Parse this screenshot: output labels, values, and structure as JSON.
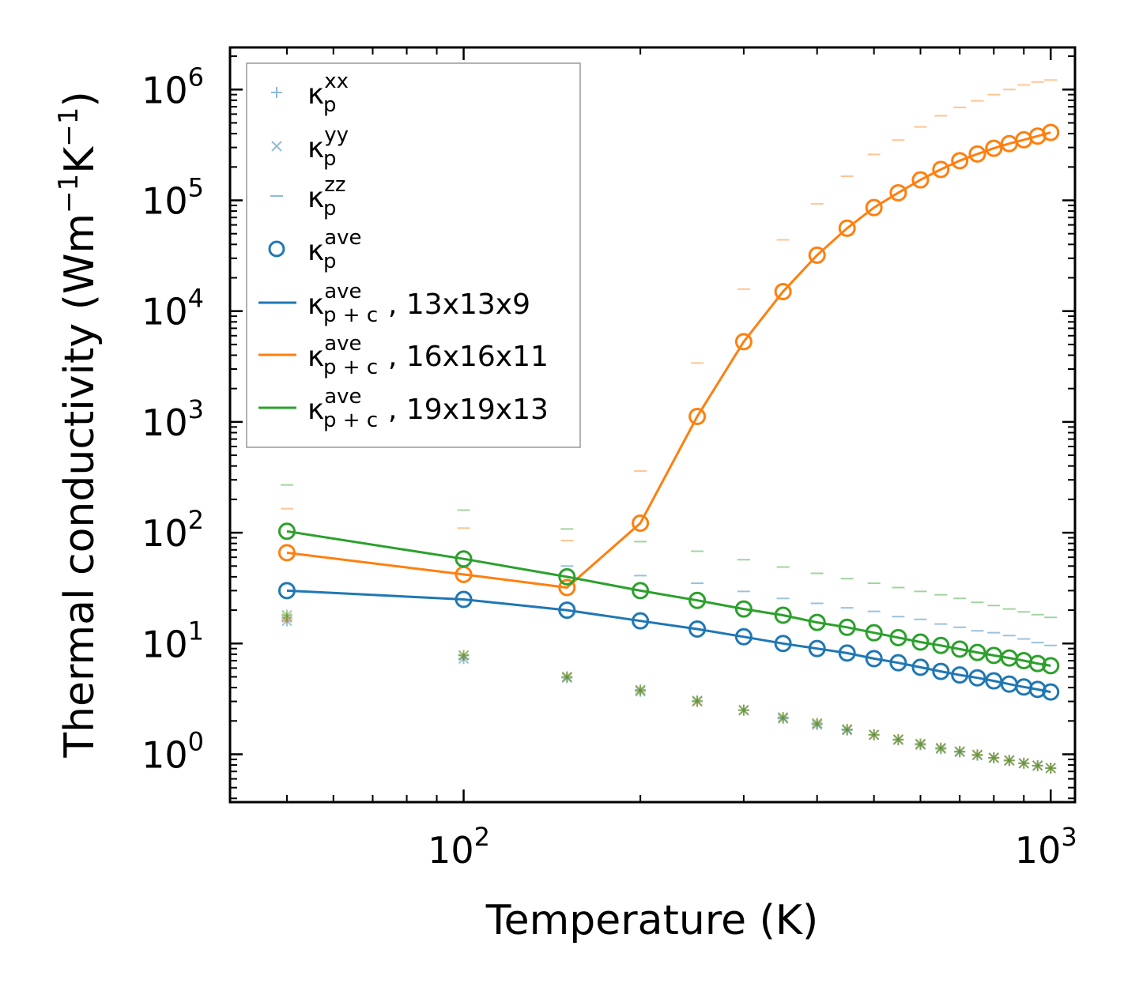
{
  "chart_data": {
    "type": "scatter",
    "xlabel": "Temperature (K)",
    "ylabel_main": "Thermal conductivity (Wm",
    "ylabel_sup1": "−1",
    "ylabel_mid": "K",
    "ylabel_sup2": "−1",
    "ylabel_end": ")",
    "xscale": "log",
    "yscale": "log",
    "xlim": [
      40,
      1100
    ],
    "ylim": [
      0.37,
      2400000
    ],
    "xticks": [
      {
        "value": 100,
        "base": "10",
        "exp": "2"
      },
      {
        "value": 1000,
        "base": "10",
        "exp": "3"
      }
    ],
    "yticks": [
      {
        "value": 1,
        "base": "10",
        "exp": "0"
      },
      {
        "value": 10,
        "base": "10",
        "exp": "1"
      },
      {
        "value": 100,
        "base": "10",
        "exp": "2"
      },
      {
        "value": 1000,
        "base": "10",
        "exp": "3"
      },
      {
        "value": 10000,
        "base": "10",
        "exp": "4"
      },
      {
        "value": 100000,
        "base": "10",
        "exp": "5"
      },
      {
        "value": 1000000,
        "base": "10",
        "exp": "6"
      }
    ],
    "x": [
      50,
      100,
      150,
      200,
      250,
      300,
      350,
      400,
      450,
      500,
      550,
      600,
      650,
      700,
      750,
      800,
      850,
      900,
      950,
      1000
    ],
    "series": [
      {
        "name": "13x13x9",
        "color": "#1f77b4",
        "kappa_xx": [
          16,
          7.3,
          4.9,
          3.7,
          3.0,
          2.5,
          2.1,
          1.85,
          1.65,
          1.5,
          1.35,
          1.22,
          1.12,
          1.05,
          0.98,
          0.93,
          0.88,
          0.83,
          0.79,
          0.75
        ],
        "kappa_yy": [
          16,
          7.3,
          4.9,
          3.7,
          3.0,
          2.5,
          2.1,
          1.85,
          1.65,
          1.5,
          1.35,
          1.22,
          1.12,
          1.05,
          0.98,
          0.93,
          0.88,
          0.83,
          0.79,
          0.75
        ],
        "kappa_zz": [
          null,
          null,
          50,
          41,
          35,
          29.5,
          25.5,
          23,
          21,
          19.5,
          17.5,
          16.5,
          15,
          14,
          13,
          12.5,
          11.8,
          11,
          10.2,
          9.6
        ],
        "kappa_ave": [
          30,
          25,
          20,
          16,
          13.5,
          11.5,
          10,
          9,
          8.2,
          7.3,
          6.7,
          6.1,
          5.6,
          5.2,
          4.9,
          4.6,
          4.3,
          4.05,
          3.85,
          3.65
        ],
        "kappa_pc_ave": [
          30,
          25,
          20,
          16,
          13.5,
          11.5,
          10,
          9,
          8.2,
          7.3,
          6.7,
          6.1,
          5.6,
          5.2,
          4.9,
          4.6,
          4.3,
          4.05,
          3.85,
          3.65
        ]
      },
      {
        "name": "16x16x11",
        "color": "#ff7f0e",
        "kappa_xx": [
          17,
          7.8,
          5.0,
          3.8,
          3.0,
          2.5,
          2.15,
          1.9,
          1.68,
          1.5,
          1.36,
          1.24,
          1.14,
          1.06,
          0.99,
          0.93,
          0.88,
          0.83,
          0.79,
          0.75
        ],
        "kappa_yy": [
          17,
          7.8,
          5.0,
          3.8,
          3.0,
          2.5,
          2.15,
          1.9,
          1.68,
          1.5,
          1.36,
          1.24,
          1.14,
          1.06,
          0.99,
          0.93,
          0.88,
          0.83,
          0.79,
          0.75
        ],
        "kappa_zz": [
          165,
          110,
          85,
          360,
          3400,
          15800,
          44000,
          93000,
          165000,
          260000,
          350000,
          460000,
          580000,
          690000,
          790000,
          900000,
          1000000,
          1100000,
          1170000,
          1220000
        ],
        "kappa_ave": [
          66,
          42,
          32,
          122,
          1120,
          5300,
          15000,
          32000,
          56000,
          86000,
          117000,
          153000,
          190000,
          228000,
          262000,
          295000,
          325000,
          352000,
          380000,
          410000
        ],
        "kappa_pc_ave": [
          66,
          42,
          32,
          122,
          1120,
          5300,
          15000,
          32000,
          56000,
          86000,
          117000,
          153000,
          190000,
          228000,
          262000,
          295000,
          325000,
          352000,
          380000,
          410000
        ]
      },
      {
        "name": "19x19x13",
        "color": "#2ca02c",
        "kappa_xx": [
          18,
          7.8,
          5.0,
          3.8,
          3.05,
          2.5,
          2.15,
          1.9,
          1.68,
          1.5,
          1.36,
          1.24,
          1.14,
          1.06,
          0.99,
          0.93,
          0.88,
          0.83,
          0.79,
          0.75
        ],
        "kappa_yy": [
          18,
          7.8,
          5.0,
          3.8,
          3.05,
          2.5,
          2.15,
          1.9,
          1.68,
          1.5,
          1.36,
          1.24,
          1.14,
          1.06,
          0.99,
          0.93,
          0.88,
          0.83,
          0.79,
          0.75
        ],
        "kappa_zz": [
          270,
          160,
          108,
          83,
          68,
          57,
          49,
          43,
          38.5,
          35,
          32,
          29.5,
          27.5,
          25.5,
          23.5,
          22,
          20.5,
          19.3,
          18.2,
          17.2
        ],
        "kappa_ave": [
          103,
          58,
          40,
          30,
          24.5,
          20.5,
          18,
          15.5,
          14,
          12.5,
          11.3,
          10.3,
          9.6,
          8.9,
          8.3,
          7.8,
          7.4,
          7.0,
          6.6,
          6.3
        ],
        "kappa_pc_ave": [
          103,
          58,
          40,
          30,
          24.5,
          20.5,
          18,
          15.5,
          14,
          12.5,
          11.3,
          10.3,
          9.6,
          8.9,
          8.3,
          7.8,
          7.4,
          7.0,
          6.6,
          6.3
        ]
      }
    ],
    "legend": {
      "placement": "top-left",
      "entries": [
        {
          "marker": "plus",
          "color": "#1f77b4",
          "alpha": 0.5,
          "sym": "κ",
          "sup": "xx",
          "sub": "p",
          "suffix": ""
        },
        {
          "marker": "x",
          "color": "#1f77b4",
          "alpha": 0.5,
          "sym": "κ",
          "sup": "yy",
          "sub": "p",
          "suffix": ""
        },
        {
          "marker": "dash",
          "color": "#1f77b4",
          "alpha": 0.5,
          "sym": "κ",
          "sup": "zz",
          "sub": "p",
          "suffix": ""
        },
        {
          "marker": "circle",
          "color": "#1f77b4",
          "alpha": 1,
          "sym": "κ",
          "sup": "ave",
          "sub": "p",
          "suffix": ""
        },
        {
          "marker": "line",
          "color": "#1f77b4",
          "alpha": 1,
          "sym": "κ",
          "sup": "ave",
          "sub": "p + c",
          "suffix": ", 13x13x9"
        },
        {
          "marker": "line",
          "color": "#ff7f0e",
          "alpha": 1,
          "sym": "κ",
          "sup": "ave",
          "sub": "p + c",
          "suffix": ", 16x16x11"
        },
        {
          "marker": "line",
          "color": "#2ca02c",
          "alpha": 1,
          "sym": "κ",
          "sup": "ave",
          "sub": "p + c",
          "suffix": ", 19x19x13"
        }
      ]
    }
  }
}
